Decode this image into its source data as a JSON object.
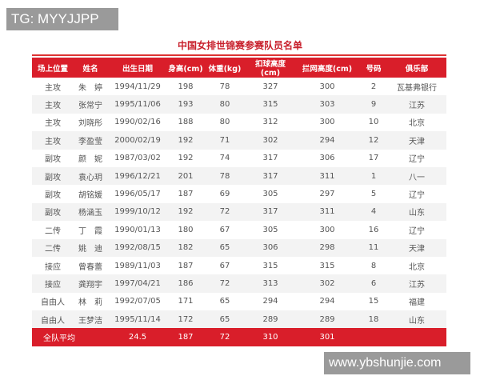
{
  "watermarks": {
    "top_left": "TG: MYYJJPP",
    "bottom_right": "www.ybshunjie.com"
  },
  "title": "中国女排世锦赛参赛队员名单",
  "headers": [
    "场上位置",
    "姓名",
    "出生日期",
    "身高(cm)",
    "体重(kg)",
    "扣球高度(cm)",
    "拦网高度(cm)",
    "号码",
    "俱乐部"
  ],
  "rows": [
    [
      "主攻",
      "朱　婷",
      "1994/11/29",
      "198",
      "78",
      "327",
      "300",
      "2",
      "瓦基弗银行"
    ],
    [
      "主攻",
      "张常宁",
      "1995/11/06",
      "193",
      "80",
      "315",
      "303",
      "9",
      "江苏"
    ],
    [
      "主攻",
      "刘晓彤",
      "1990/02/16",
      "188",
      "80",
      "312",
      "300",
      "10",
      "北京"
    ],
    [
      "主攻",
      "李盈莹",
      "2000/02/19",
      "192",
      "71",
      "302",
      "294",
      "12",
      "天津"
    ],
    [
      "副攻",
      "颜　妮",
      "1987/03/02",
      "192",
      "74",
      "317",
      "306",
      "17",
      "辽宁"
    ],
    [
      "副攻",
      "袁心玥",
      "1996/12/21",
      "201",
      "78",
      "317",
      "311",
      "1",
      "八一"
    ],
    [
      "副攻",
      "胡铭媛",
      "1996/05/17",
      "187",
      "69",
      "305",
      "297",
      "5",
      "辽宁"
    ],
    [
      "副攻",
      "杨涵玉",
      "1999/10/12",
      "192",
      "72",
      "317",
      "311",
      "4",
      "山东"
    ],
    [
      "二传",
      "丁　霞",
      "1990/01/13",
      "180",
      "67",
      "305",
      "300",
      "16",
      "辽宁"
    ],
    [
      "二传",
      "姚　迪",
      "1992/08/15",
      "182",
      "65",
      "306",
      "298",
      "11",
      "天津"
    ],
    [
      "接应",
      "曾春蕾",
      "1989/11/03",
      "187",
      "67",
      "315",
      "315",
      "8",
      "北京"
    ],
    [
      "接应",
      "龚翔宇",
      "1997/04/21",
      "186",
      "72",
      "313",
      "302",
      "6",
      "江苏"
    ],
    [
      "自由人",
      "林　莉",
      "1992/07/05",
      "171",
      "65",
      "294",
      "294",
      "15",
      "福建"
    ],
    [
      "自由人",
      "王梦洁",
      "1995/11/14",
      "172",
      "65",
      "289",
      "289",
      "18",
      "山东"
    ]
  ],
  "footer": {
    "label": "全队平均",
    "age": "24.5",
    "height": "187",
    "weight": "72",
    "spike": "310",
    "block": "301"
  }
}
